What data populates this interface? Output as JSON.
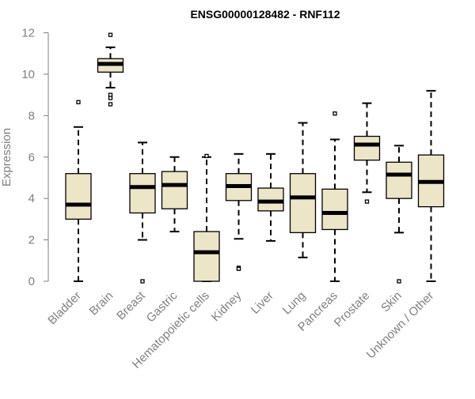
{
  "chart_data": {
    "type": "box",
    "title": "ENSG00000128482 - RNF112",
    "xlabel": "",
    "ylabel": "Expression",
    "ylim": [
      0,
      12
    ],
    "yticks": [
      0,
      2,
      4,
      6,
      8,
      10,
      12
    ],
    "grid": false,
    "colors": {
      "box_fill": "#ede5c8",
      "box_stroke": "#000000",
      "median": "#000000",
      "axis": "#7f7f7f",
      "tick_label": "#7f7f7f"
    },
    "categories": [
      "Bladder",
      "Brain",
      "Breast",
      "Gastric",
      "Hematopoietic cells",
      "Kidney",
      "Liver",
      "Lung",
      "Pancreas",
      "Prostate",
      "Skin",
      "Unknown / Other"
    ],
    "boxes": [
      {
        "min": 0.0,
        "q1": 3.0,
        "median": 3.7,
        "q3": 5.2,
        "max": 7.45,
        "outliers": [
          8.65
        ]
      },
      {
        "min": 9.35,
        "q1": 10.1,
        "median": 10.5,
        "q3": 10.75,
        "max": 11.3,
        "outliers": [
          11.9,
          9.0,
          8.85,
          8.55
        ]
      },
      {
        "min": 2.0,
        "q1": 3.3,
        "median": 4.55,
        "q3": 5.2,
        "max": 6.7,
        "outliers": [
          0.0
        ]
      },
      {
        "min": 2.4,
        "q1": 3.5,
        "median": 4.65,
        "q3": 5.3,
        "max": 6.0,
        "outliers": []
      },
      {
        "min": 0.0,
        "q1": 0.0,
        "median": 1.4,
        "q3": 2.4,
        "max": 6.0,
        "outliers": [
          6.05
        ]
      },
      {
        "min": 2.05,
        "q1": 3.9,
        "median": 4.6,
        "q3": 5.2,
        "max": 6.15,
        "outliers": [
          0.65,
          0.6
        ]
      },
      {
        "min": 1.95,
        "q1": 3.4,
        "median": 3.85,
        "q3": 4.5,
        "max": 6.15,
        "outliers": []
      },
      {
        "min": 1.15,
        "q1": 2.35,
        "median": 4.05,
        "q3": 5.2,
        "max": 7.65,
        "outliers": []
      },
      {
        "min": 0.0,
        "q1": 2.5,
        "median": 3.3,
        "q3": 4.45,
        "max": 6.85,
        "outliers": [
          8.1
        ]
      },
      {
        "min": 4.3,
        "q1": 5.85,
        "median": 6.6,
        "q3": 7.0,
        "max": 8.6,
        "outliers": [
          3.85
        ]
      },
      {
        "min": 2.35,
        "q1": 4.0,
        "median": 5.15,
        "q3": 5.75,
        "max": 6.55,
        "outliers": [
          0.0
        ]
      },
      {
        "min": 0.0,
        "q1": 3.6,
        "median": 4.8,
        "q3": 6.1,
        "max": 9.2,
        "outliers": []
      }
    ]
  }
}
